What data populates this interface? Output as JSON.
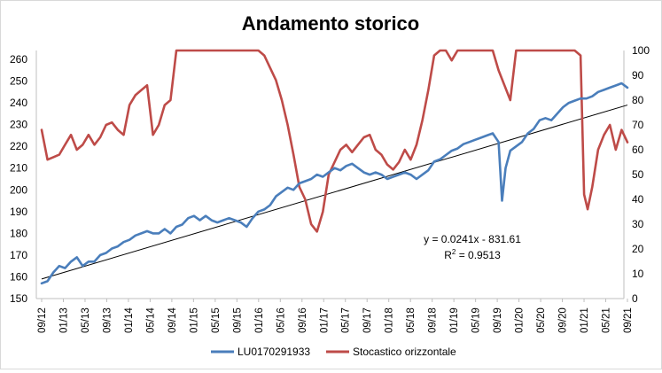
{
  "chart_data": {
    "type": "line",
    "title": "Andamento storico",
    "x_ticks": [
      "09/12",
      "01/13",
      "05/13",
      "09/13",
      "01/14",
      "05/14",
      "09/14",
      "01/15",
      "05/15",
      "09/15",
      "01/16",
      "05/16",
      "09/16",
      "01/17",
      "05/17",
      "09/17",
      "01/18",
      "05/18",
      "09/18",
      "01/19",
      "05/19",
      "09/19",
      "01/20",
      "05/20",
      "09/20",
      "01/21",
      "05/21",
      "09/21"
    ],
    "y_left": {
      "min": 150,
      "max": 260,
      "step": 10
    },
    "y_right": {
      "min": 0,
      "max": 100,
      "step": 10
    },
    "grid": false,
    "legend": "bottom",
    "series": [
      {
        "name": "LU0170291933",
        "axis": "left",
        "color": "#4a7ebb",
        "points": [
          [
            0,
            157
          ],
          [
            0.5,
            158
          ],
          [
            1,
            162
          ],
          [
            1.5,
            165
          ],
          [
            2,
            164
          ],
          [
            2.5,
            167
          ],
          [
            3,
            169
          ],
          [
            3.5,
            165
          ],
          [
            4,
            167
          ],
          [
            4.5,
            167
          ],
          [
            5,
            170
          ],
          [
            5.5,
            171
          ],
          [
            6,
            173
          ],
          [
            6.5,
            174
          ],
          [
            7,
            176
          ],
          [
            7.5,
            177
          ],
          [
            8,
            179
          ],
          [
            8.5,
            180
          ],
          [
            9,
            181
          ],
          [
            9.5,
            180
          ],
          [
            10,
            180
          ],
          [
            10.5,
            182
          ],
          [
            11,
            180
          ],
          [
            11.5,
            183
          ],
          [
            12,
            184
          ],
          [
            12.5,
            187
          ],
          [
            13,
            188
          ],
          [
            13.5,
            186
          ],
          [
            14,
            188
          ],
          [
            14.5,
            186
          ],
          [
            15,
            185
          ],
          [
            15.5,
            186
          ],
          [
            16,
            187
          ],
          [
            16.5,
            186
          ],
          [
            17,
            185
          ],
          [
            17.5,
            183
          ],
          [
            18,
            187
          ],
          [
            18.5,
            190
          ],
          [
            19,
            191
          ],
          [
            19.5,
            193
          ],
          [
            20,
            197
          ],
          [
            20.5,
            199
          ],
          [
            21,
            201
          ],
          [
            21.5,
            200
          ],
          [
            22,
            203
          ],
          [
            22.5,
            204
          ],
          [
            23,
            205
          ],
          [
            23.5,
            207
          ],
          [
            24,
            206
          ],
          [
            24.5,
            208
          ],
          [
            25,
            210
          ],
          [
            25.5,
            209
          ],
          [
            26,
            211
          ],
          [
            26.5,
            212
          ],
          [
            27,
            210
          ],
          [
            27.5,
            208
          ],
          [
            28,
            207
          ],
          [
            28.5,
            208
          ],
          [
            29,
            207
          ],
          [
            29.5,
            205
          ],
          [
            30,
            206
          ],
          [
            30.5,
            207
          ],
          [
            31,
            208
          ],
          [
            31.5,
            207
          ],
          [
            32,
            205
          ],
          [
            32.5,
            207
          ],
          [
            33,
            209
          ],
          [
            33.5,
            213
          ],
          [
            34,
            214
          ],
          [
            34.5,
            216
          ],
          [
            35,
            218
          ],
          [
            35.5,
            219
          ],
          [
            36,
            221
          ],
          [
            36.5,
            222
          ],
          [
            37,
            223
          ],
          [
            37.5,
            224
          ],
          [
            38,
            225
          ],
          [
            38.5,
            226
          ],
          [
            39,
            222
          ],
          [
            39.3,
            195
          ],
          [
            39.6,
            210
          ],
          [
            40,
            218
          ],
          [
            40.5,
            220
          ],
          [
            41,
            222
          ],
          [
            41.5,
            226
          ],
          [
            42,
            228
          ],
          [
            42.5,
            232
          ],
          [
            43,
            233
          ],
          [
            43.5,
            232
          ],
          [
            44,
            235
          ],
          [
            44.5,
            238
          ],
          [
            45,
            240
          ],
          [
            45.5,
            241
          ],
          [
            46,
            242
          ],
          [
            46.5,
            242
          ],
          [
            47,
            243
          ],
          [
            47.5,
            245
          ],
          [
            48,
            246
          ],
          [
            48.5,
            247
          ],
          [
            49,
            248
          ],
          [
            49.5,
            249
          ],
          [
            50,
            247
          ]
        ]
      },
      {
        "name": "Stocastico orizzontale",
        "axis": "right",
        "color": "#be4b48",
        "points": [
          [
            0,
            68
          ],
          [
            0.5,
            56
          ],
          [
            1,
            57
          ],
          [
            1.5,
            58
          ],
          [
            2,
            62
          ],
          [
            2.5,
            66
          ],
          [
            3,
            60
          ],
          [
            3.5,
            62
          ],
          [
            4,
            66
          ],
          [
            4.5,
            62
          ],
          [
            5,
            65
          ],
          [
            5.5,
            70
          ],
          [
            6,
            71
          ],
          [
            6.5,
            68
          ],
          [
            7,
            66
          ],
          [
            7.5,
            78
          ],
          [
            8,
            82
          ],
          [
            8.5,
            84
          ],
          [
            9,
            86
          ],
          [
            9.5,
            66
          ],
          [
            10,
            70
          ],
          [
            10.5,
            78
          ],
          [
            11,
            80
          ],
          [
            11.5,
            100
          ],
          [
            12,
            100
          ],
          [
            12.5,
            100
          ],
          [
            13,
            100
          ],
          [
            13.5,
            100
          ],
          [
            14,
            100
          ],
          [
            14.5,
            100
          ],
          [
            15,
            100
          ],
          [
            15.5,
            100
          ],
          [
            16,
            100
          ],
          [
            16.5,
            100
          ],
          [
            17,
            100
          ],
          [
            17.5,
            100
          ],
          [
            18,
            100
          ],
          [
            18.5,
            100
          ],
          [
            19,
            98
          ],
          [
            19.5,
            93
          ],
          [
            20,
            88
          ],
          [
            20.5,
            80
          ],
          [
            21,
            70
          ],
          [
            21.5,
            58
          ],
          [
            22,
            45
          ],
          [
            22.5,
            40
          ],
          [
            23,
            30
          ],
          [
            23.5,
            27
          ],
          [
            24,
            35
          ],
          [
            24.5,
            50
          ],
          [
            25,
            55
          ],
          [
            25.5,
            60
          ],
          [
            26,
            62
          ],
          [
            26.5,
            59
          ],
          [
            27,
            62
          ],
          [
            27.5,
            65
          ],
          [
            28,
            66
          ],
          [
            28.5,
            60
          ],
          [
            29,
            58
          ],
          [
            29.5,
            54
          ],
          [
            30,
            52
          ],
          [
            30.5,
            55
          ],
          [
            31,
            60
          ],
          [
            31.5,
            56
          ],
          [
            32,
            62
          ],
          [
            32.5,
            72
          ],
          [
            33,
            84
          ],
          [
            33.5,
            98
          ],
          [
            34,
            100
          ],
          [
            34.5,
            100
          ],
          [
            35,
            96
          ],
          [
            35.5,
            100
          ],
          [
            36,
            100
          ],
          [
            36.5,
            100
          ],
          [
            37,
            100
          ],
          [
            37.5,
            100
          ],
          [
            38,
            100
          ],
          [
            38.5,
            100
          ],
          [
            39,
            92
          ],
          [
            39.5,
            86
          ],
          [
            40,
            80
          ],
          [
            40.5,
            100
          ],
          [
            41,
            100
          ],
          [
            41.5,
            100
          ],
          [
            42,
            100
          ],
          [
            42.5,
            100
          ],
          [
            43,
            100
          ],
          [
            43.5,
            100
          ],
          [
            44,
            100
          ],
          [
            44.5,
            100
          ],
          [
            45,
            100
          ],
          [
            45.5,
            100
          ],
          [
            46,
            98
          ],
          [
            46.3,
            42
          ],
          [
            46.6,
            36
          ],
          [
            47,
            45
          ],
          [
            47.5,
            60
          ],
          [
            48,
            66
          ],
          [
            48.5,
            70
          ],
          [
            49,
            60
          ],
          [
            49.5,
            68
          ],
          [
            50,
            63
          ]
        ]
      }
    ],
    "trendline": {
      "series": "LU0170291933",
      "start": [
        0,
        159
      ],
      "end": [
        50,
        239
      ],
      "color": "#000000"
    },
    "annotations": {
      "equation": "y = 0.0241x - 831.61",
      "r_squared_prefix": "R",
      "r_squared_sup": "2",
      "r_squared_value": " = 0.9513"
    }
  }
}
